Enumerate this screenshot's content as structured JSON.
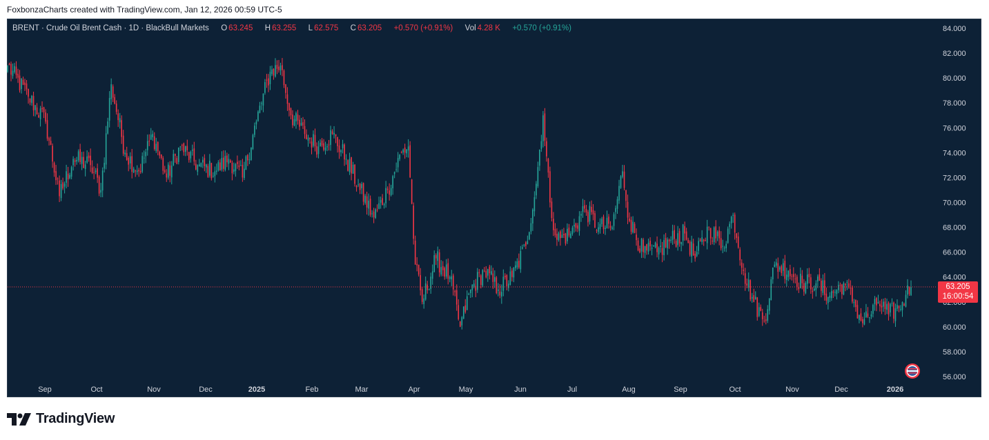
{
  "caption": "FoxbonzaCharts created with TradingView.com, Jan 12, 2026 00:59 UTC-5",
  "legend": {
    "symbol": "BRENT · Crude Oil Brent Cash · 1D · BlackBull Markets",
    "o_label": "O",
    "o_value": "63.245",
    "h_label": "H",
    "h_value": "63.255",
    "l_label": "L",
    "l_value": "62.575",
    "c_label": "C",
    "c_value": "63.205",
    "change": "+0.570 (+0.91%)",
    "vol_label": "Vol",
    "vol_value": "4.28 K",
    "vol_change": "+0.570 (+0.91%)"
  },
  "last_price": {
    "price": "63.205",
    "countdown": "16:00:54"
  },
  "footer": {
    "brand": "TradingView"
  },
  "colors": {
    "up": "#26a69a",
    "down": "#f23645",
    "background": "#0d2136",
    "text": "#d1d4dc"
  },
  "chart_data": {
    "type": "candlestick",
    "title": "",
    "xlabel": "",
    "ylabel": "",
    "ylim": [
      56,
      84
    ],
    "y_ticks": [
      "56.000",
      "58.000",
      "60.000",
      "62.000",
      "64.000",
      "66.000",
      "68.000",
      "70.000",
      "72.000",
      "74.000",
      "76.000",
      "78.000",
      "80.000",
      "82.000",
      "84.000"
    ],
    "x_ticks": [
      "Sep",
      "Oct",
      "Nov",
      "Dec",
      "2025",
      "Feb",
      "Mar",
      "Apr",
      "May",
      "Jun",
      "Jul",
      "Aug",
      "Sep",
      "Oct",
      "Nov",
      "Dec",
      "2026"
    ],
    "grid": false,
    "series": [
      {
        "name": "BRENT",
        "anchors": [
          {
            "x": 0,
            "close": 81.0
          },
          {
            "x": 12,
            "close": 78.5
          },
          {
            "x": 22,
            "close": 76.5
          },
          {
            "x": 30,
            "close": 70.5
          },
          {
            "x": 38,
            "close": 73.5
          },
          {
            "x": 48,
            "close": 73.0
          },
          {
            "x": 54,
            "close": 71.0
          },
          {
            "x": 60,
            "close": 79.5
          },
          {
            "x": 68,
            "close": 74.0
          },
          {
            "x": 76,
            "close": 72.5
          },
          {
            "x": 84,
            "close": 75.5
          },
          {
            "x": 92,
            "close": 72.0
          },
          {
            "x": 100,
            "close": 74.5
          },
          {
            "x": 110,
            "close": 73.0
          },
          {
            "x": 120,
            "close": 72.5
          },
          {
            "x": 128,
            "close": 73.5
          },
          {
            "x": 136,
            "close": 72.0
          },
          {
            "x": 144,
            "close": 76.5
          },
          {
            "x": 152,
            "close": 80.5
          },
          {
            "x": 158,
            "close": 81.0
          },
          {
            "x": 164,
            "close": 77.0
          },
          {
            "x": 172,
            "close": 75.5
          },
          {
            "x": 180,
            "close": 74.5
          },
          {
            "x": 188,
            "close": 75.5
          },
          {
            "x": 196,
            "close": 73.5
          },
          {
            "x": 204,
            "close": 71.0
          },
          {
            "x": 212,
            "close": 68.8
          },
          {
            "x": 220,
            "close": 71.0
          },
          {
            "x": 228,
            "close": 74.0
          },
          {
            "x": 232,
            "close": 74.5
          },
          {
            "x": 236,
            "close": 65.0
          },
          {
            "x": 240,
            "close": 62.0
          },
          {
            "x": 248,
            "close": 65.5
          },
          {
            "x": 256,
            "close": 64.0
          },
          {
            "x": 262,
            "close": 60.0
          },
          {
            "x": 268,
            "close": 63.0
          },
          {
            "x": 276,
            "close": 64.5
          },
          {
            "x": 284,
            "close": 63.0
          },
          {
            "x": 292,
            "close": 64.0
          },
          {
            "x": 300,
            "close": 66.5
          },
          {
            "x": 306,
            "close": 71.5
          },
          {
            "x": 310,
            "close": 77.0
          },
          {
            "x": 314,
            "close": 70.0
          },
          {
            "x": 318,
            "close": 67.0
          },
          {
            "x": 326,
            "close": 67.5
          },
          {
            "x": 334,
            "close": 69.5
          },
          {
            "x": 342,
            "close": 68.0
          },
          {
            "x": 350,
            "close": 68.0
          },
          {
            "x": 356,
            "close": 72.5
          },
          {
            "x": 360,
            "close": 68.5
          },
          {
            "x": 368,
            "close": 66.0
          },
          {
            "x": 376,
            "close": 66.0
          },
          {
            "x": 384,
            "close": 67.0
          },
          {
            "x": 392,
            "close": 67.5
          },
          {
            "x": 398,
            "close": 65.5
          },
          {
            "x": 406,
            "close": 68.0
          },
          {
            "x": 414,
            "close": 66.5
          },
          {
            "x": 420,
            "close": 69.0
          },
          {
            "x": 426,
            "close": 64.5
          },
          {
            "x": 432,
            "close": 62.0
          },
          {
            "x": 438,
            "close": 60.5
          },
          {
            "x": 444,
            "close": 65.0
          },
          {
            "x": 452,
            "close": 64.5
          },
          {
            "x": 460,
            "close": 63.5
          },
          {
            "x": 468,
            "close": 63.5
          },
          {
            "x": 476,
            "close": 62.5
          },
          {
            "x": 484,
            "close": 63.5
          },
          {
            "x": 490,
            "close": 62.0
          },
          {
            "x": 494,
            "close": 60.5
          },
          {
            "x": 500,
            "close": 61.0
          },
          {
            "x": 504,
            "close": 62.0
          },
          {
            "x": 510,
            "close": 61.0
          },
          {
            "x": 516,
            "close": 61.5
          },
          {
            "x": 520,
            "close": 62.575
          },
          {
            "x": 523,
            "close": 63.205
          }
        ]
      }
    ]
  }
}
